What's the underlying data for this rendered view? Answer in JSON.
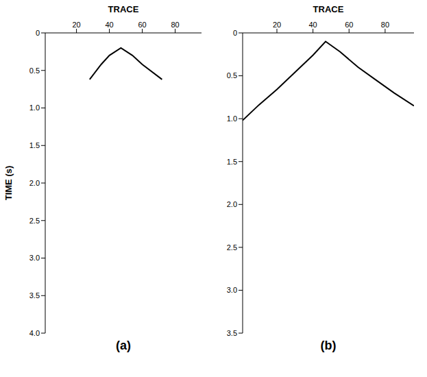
{
  "chart_data": [
    {
      "type": "line",
      "title": "(a)",
      "x_label": "TRACE",
      "y_label": "TIME (s)",
      "color": "#000000",
      "x": [
        28,
        35,
        40,
        47,
        54,
        60,
        72
      ],
      "values": [
        0.62,
        0.42,
        0.3,
        0.2,
        0.3,
        0.42,
        0.62
      ],
      "xlim": [
        1,
        96
      ],
      "xticks": [
        20,
        40,
        60,
        80
      ],
      "ylim": [
        0,
        4
      ],
      "yticks": [
        0,
        0.5,
        {
          "value": 1,
          "label": "1.0"
        },
        1.5,
        {
          "value": 2,
          "label": "2.0"
        },
        2.5,
        {
          "value": 3,
          "label": "3.0"
        },
        3.5,
        {
          "value": 4,
          "label": "4.0"
        }
      ]
    },
    {
      "type": "line",
      "title": "(b)",
      "x_label": "TRACE",
      "color": "#000000",
      "x": [
        1,
        10,
        20,
        30,
        40,
        47,
        55,
        65,
        75,
        85,
        96
      ],
      "values": [
        1.02,
        0.84,
        0.66,
        0.46,
        0.26,
        0.1,
        0.22,
        0.4,
        0.55,
        0.7,
        0.85
      ],
      "xlim": [
        1,
        96
      ],
      "xticks": [
        20,
        40,
        60,
        80
      ],
      "ylim": [
        0,
        3.5
      ],
      "yticks": [
        0,
        0.5,
        {
          "value": 1,
          "label": "1.0"
        },
        1.5,
        {
          "value": 2,
          "label": "2.0"
        },
        2.5,
        {
          "value": 3,
          "label": "3.0"
        },
        3.5
      ]
    }
  ]
}
